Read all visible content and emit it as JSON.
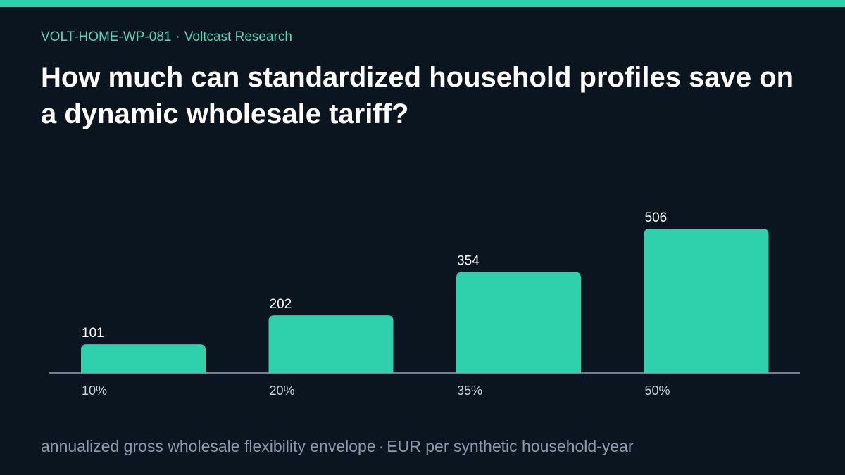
{
  "header": {
    "code": "VOLT-HOME-WP-081",
    "separator": "·",
    "org": "Voltcast Research",
    "title": "How much can standardized household profiles save on a dynamic wholesale tariff?"
  },
  "footer": {
    "metric": "annualized gross wholesale flexibility envelope",
    "separator": "·",
    "unit": "EUR per synthetic household-year"
  },
  "colors": {
    "accent": "#2fd0ac",
    "background": "#0b1520",
    "bar": "#2fd0ac",
    "axis": "#8fa3b8",
    "text": "#ffffff",
    "muted": "#8b9bad"
  },
  "chart_data": {
    "type": "bar",
    "categories": [
      "10%",
      "20%",
      "35%",
      "50%"
    ],
    "values": [
      101,
      202,
      354,
      506
    ],
    "value_labels": [
      "101",
      "202",
      "354",
      "506"
    ],
    "title": "",
    "xlabel": "",
    "ylabel": "",
    "ylim": [
      0,
      506
    ],
    "grid": false,
    "legend": "none"
  }
}
